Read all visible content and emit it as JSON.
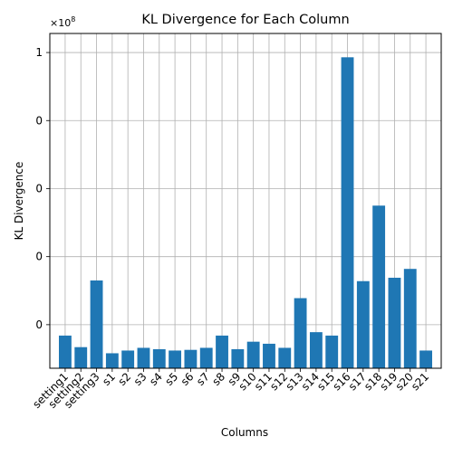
{
  "chart_data": {
    "type": "bar",
    "title": "KL Divergence for Each Column",
    "xlabel": "Columns",
    "ylabel": "KL Divergence",
    "offset_label": "×10",
    "offset_exponent": "8",
    "categories": [
      "setting1",
      "setting2",
      "setting3",
      "s1",
      "s2",
      "s3",
      "s4",
      "s5",
      "s6",
      "s7",
      "s8",
      "s9",
      "s10",
      "s11",
      "s12",
      "s13",
      "s14",
      "s15",
      "s16",
      "s17",
      "s18",
      "s19",
      "s20",
      "s21"
    ],
    "values": [
      -0.16,
      -0.33,
      0.65,
      -0.42,
      -0.38,
      -0.34,
      -0.36,
      -0.38,
      -0.37,
      -0.34,
      -0.16,
      -0.36,
      -0.25,
      -0.28,
      -0.34,
      0.39,
      -0.11,
      -0.16,
      3.93,
      0.64,
      1.75,
      0.69,
      0.82,
      -0.38
    ],
    "ytick_values": [
      0,
      1,
      2,
      3,
      4
    ],
    "ytick_labels": [
      "0",
      "0",
      "0",
      "0",
      "1"
    ],
    "ylim": [
      -0.64,
      4.28
    ],
    "grid": true,
    "bar_color": "#1f77b4"
  }
}
